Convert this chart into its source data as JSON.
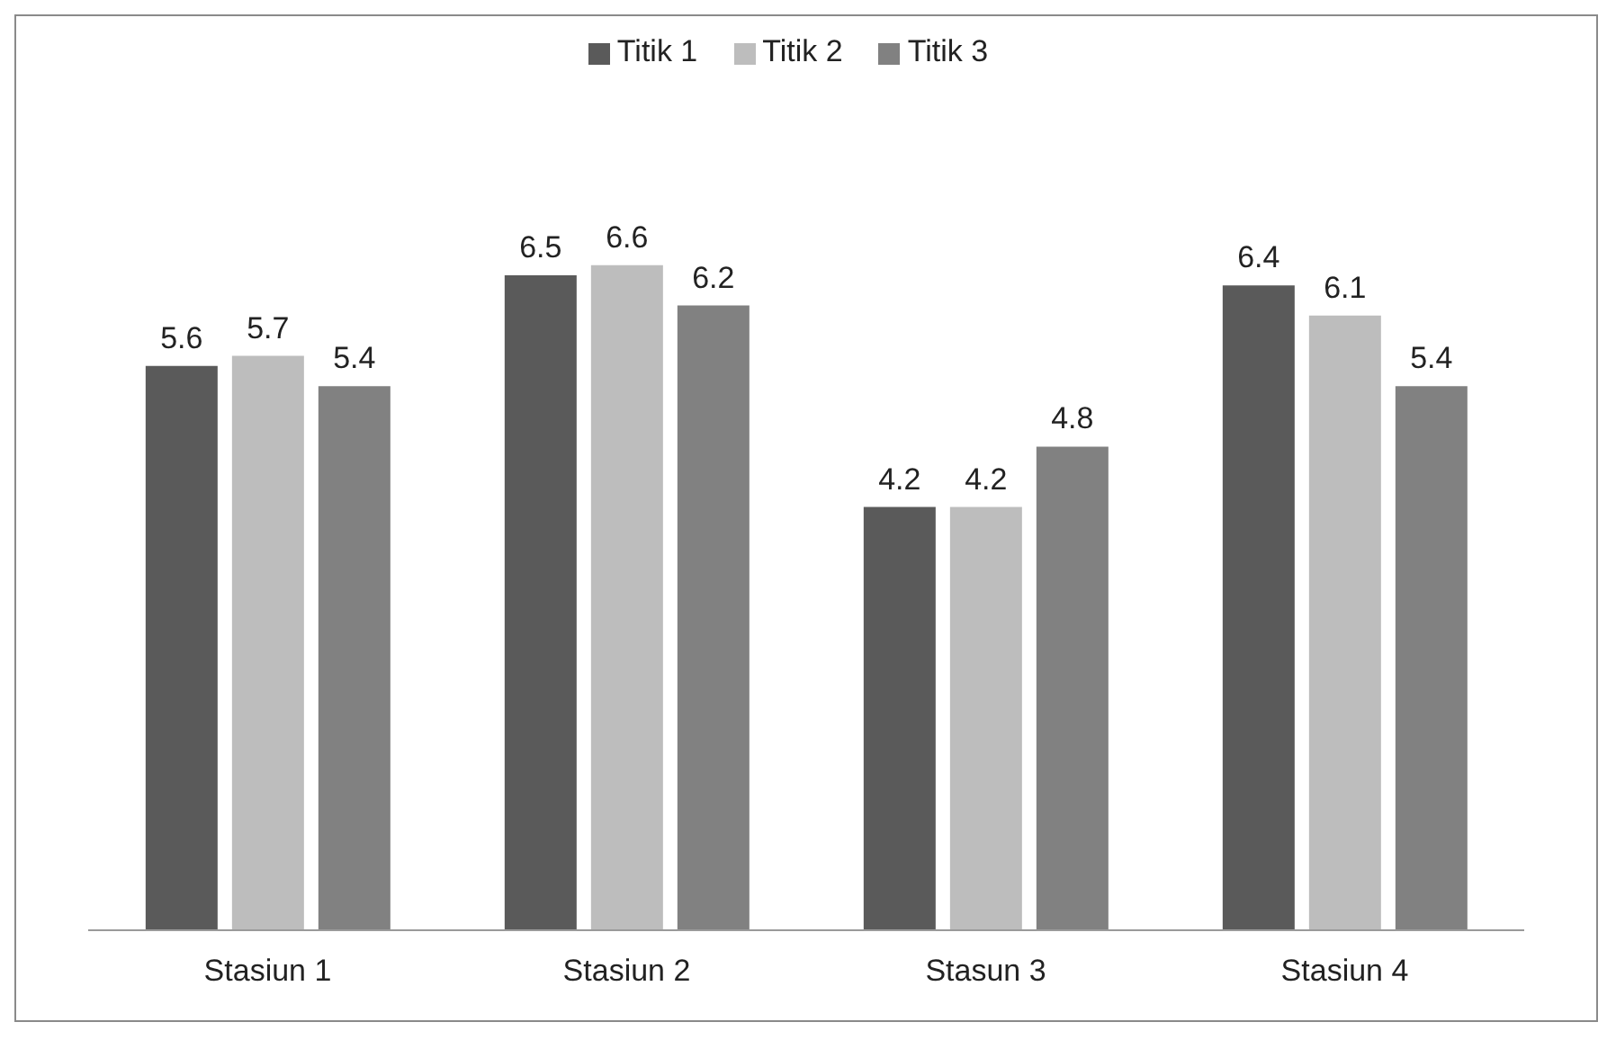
{
  "chart_data": {
    "type": "bar",
    "categories": [
      "Stasiun 1",
      "Stasiun 2",
      "Stasun 3",
      "Stasiun 4"
    ],
    "series": [
      {
        "name": "Titik 1",
        "color": "#5a5a5a",
        "values": [
          5.6,
          6.5,
          4.2,
          6.4
        ]
      },
      {
        "name": "Titik 2",
        "color": "#bdbdbd",
        "values": [
          5.7,
          6.6,
          4.2,
          6.1
        ]
      },
      {
        "name": "Titik 3",
        "color": "#818181",
        "values": [
          5.4,
          6.2,
          4.8,
          5.4
        ]
      }
    ],
    "data_labels": true,
    "legend": "top",
    "grid": false
  }
}
